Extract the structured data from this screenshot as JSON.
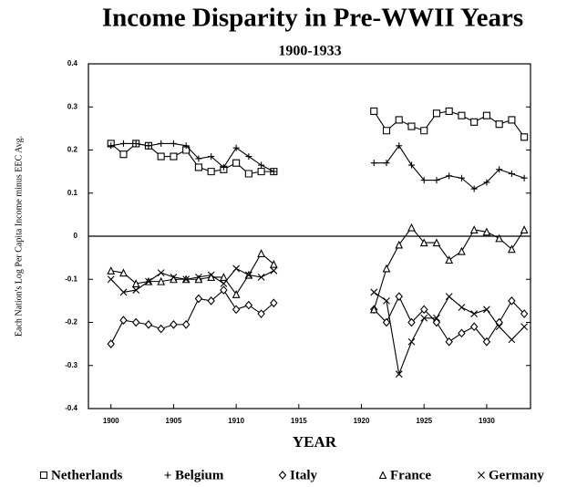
{
  "chart_data": {
    "type": "line",
    "title": "Income Disparity in Pre-WWII Years",
    "subtitle": "1900-1933",
    "x_label": "YEAR",
    "y_label": "Each Nation's Log Per Capita Income minus EEC Avg.",
    "x": [
      1900,
      1901,
      1902,
      1903,
      1904,
      1905,
      1906,
      1907,
      1908,
      1909,
      1910,
      1911,
      1912,
      1913,
      1914,
      1915,
      1916,
      1917,
      1918,
      1919,
      1920,
      1921,
      1922,
      1923,
      1924,
      1925,
      1926,
      1927,
      1928,
      1929,
      1930,
      1931,
      1932,
      1933
    ],
    "xlim": [
      1898.2,
      1933.5
    ],
    "xticks": [
      1900,
      1905,
      1910,
      1915,
      1920,
      1925,
      1930
    ],
    "ylim": [
      -0.4,
      0.4
    ],
    "yticks": [
      0.4,
      0.3,
      0.2,
      0.1,
      0,
      -0.1,
      -0.2,
      -0.3,
      -0.4
    ],
    "hline": 0,
    "legend": "bottom",
    "series": [
      {
        "name": "Netherlands",
        "color": "#000000",
        "marker": "square",
        "values": [
          0.215,
          0.19,
          0.215,
          0.21,
          0.185,
          0.185,
          0.2,
          0.16,
          0.15,
          0.155,
          0.17,
          0.145,
          0.15,
          0.15,
          null,
          null,
          null,
          null,
          null,
          null,
          null,
          0.29,
          0.245,
          0.27,
          0.255,
          0.245,
          0.285,
          0.29,
          0.28,
          0.265,
          0.28,
          0.26,
          0.27,
          0.23
        ]
      },
      {
        "name": "Belgium",
        "color": "#000000",
        "marker": "plus",
        "values": [
          0.21,
          0.215,
          0.215,
          0.21,
          0.215,
          0.215,
          0.21,
          0.18,
          0.185,
          0.16,
          0.205,
          0.185,
          0.165,
          0.15,
          null,
          null,
          null,
          null,
          null,
          null,
          null,
          0.17,
          0.17,
          0.21,
          0.165,
          0.13,
          0.13,
          0.14,
          0.135,
          0.11,
          0.125,
          0.155,
          0.145,
          0.135
        ]
      },
      {
        "name": "Italy",
        "color": "#000000",
        "marker": "diamond",
        "values": [
          -0.25,
          -0.195,
          -0.2,
          -0.205,
          -0.215,
          -0.205,
          -0.205,
          -0.145,
          -0.15,
          -0.125,
          -0.17,
          -0.16,
          -0.18,
          -0.155,
          null,
          null,
          null,
          null,
          null,
          null,
          null,
          -0.17,
          -0.2,
          -0.14,
          -0.2,
          -0.17,
          -0.2,
          -0.245,
          -0.225,
          -0.21,
          -0.245,
          -0.2,
          -0.15,
          -0.18
        ]
      },
      {
        "name": "France",
        "color": "#000000",
        "marker": "triangle",
        "values": [
          -0.08,
          -0.085,
          -0.11,
          -0.105,
          -0.105,
          -0.1,
          -0.1,
          -0.1,
          -0.095,
          -0.095,
          -0.135,
          -0.09,
          -0.04,
          -0.065,
          null,
          null,
          null,
          null,
          null,
          null,
          null,
          -0.17,
          -0.075,
          -0.02,
          0.02,
          -0.015,
          -0.015,
          -0.055,
          -0.035,
          0.015,
          0.01,
          -0.005,
          -0.03,
          0.015
        ]
      },
      {
        "name": "Germany",
        "color": "#000000",
        "marker": "x",
        "values": [
          -0.1,
          -0.13,
          -0.125,
          -0.105,
          -0.085,
          -0.095,
          -0.1,
          -0.095,
          -0.09,
          -0.11,
          -0.075,
          -0.09,
          -0.095,
          -0.08,
          null,
          null,
          null,
          null,
          null,
          null,
          null,
          -0.13,
          -0.15,
          -0.32,
          -0.245,
          -0.19,
          -0.19,
          -0.14,
          -0.165,
          -0.18,
          -0.17,
          -0.21,
          -0.24,
          -0.21
        ]
      }
    ]
  }
}
